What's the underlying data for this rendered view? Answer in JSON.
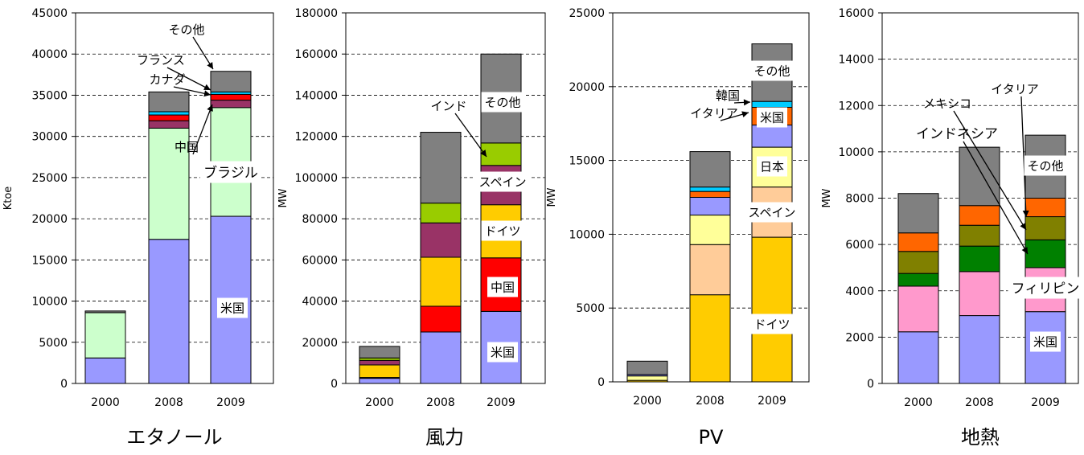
{
  "chart_data": [
    {
      "type": "bar",
      "stacked": true,
      "title": "エタノール",
      "ylabel": "Ktoe",
      "categories": [
        "2000",
        "2008",
        "2009"
      ],
      "ylim": [
        0,
        45000
      ],
      "yticks": [
        "0",
        "5000",
        "10000",
        "15000",
        "20000",
        "25000",
        "30000",
        "35000",
        "40000",
        "45000"
      ],
      "grid": true,
      "series": [
        {
          "color": "#9999FF",
          "values": [
            3100,
            17500,
            20300
          ]
        },
        {
          "color": "#CCFFCC",
          "values": [
            5500,
            13500,
            13200
          ]
        },
        {
          "color": "#993366",
          "values": [
            0,
            900,
            900
          ]
        },
        {
          "color": "#FF0000",
          "values": [
            0,
            700,
            700
          ]
        },
        {
          "color": "#00CCFF",
          "values": [
            0,
            400,
            300
          ]
        },
        {
          "color": "#808080",
          "values": [
            200,
            2400,
            2500
          ]
        }
      ],
      "annotations": [
        {
          "text": "米国"
        },
        {
          "text": "ブラジル"
        },
        {
          "text": "中国"
        },
        {
          "text": "カナダ"
        },
        {
          "text": "フランス"
        },
        {
          "text": "その他"
        }
      ]
    },
    {
      "type": "bar",
      "stacked": true,
      "title": "風力",
      "ylabel": "MW",
      "categories": [
        "2000",
        "2008",
        "2009"
      ],
      "ylim": [
        0,
        180000
      ],
      "yticks": [
        "0",
        "20000",
        "40000",
        "60000",
        "80000",
        "100000",
        "120000",
        "140000",
        "160000",
        "180000"
      ],
      "grid": true,
      "series": [
        {
          "color": "#9999FF",
          "values": [
            2500,
            25000,
            35000
          ]
        },
        {
          "color": "#FF0000",
          "values": [
            400,
            12500,
            26000
          ]
        },
        {
          "color": "#FFCC00",
          "values": [
            6100,
            23800,
            25800
          ]
        },
        {
          "color": "#993366",
          "values": [
            2200,
            16700,
            19100
          ]
        },
        {
          "color": "#99CC00",
          "values": [
            1200,
            9600,
            10900
          ]
        },
        {
          "color": "#808080",
          "values": [
            5600,
            34400,
            43200
          ]
        }
      ],
      "annotations": [
        {
          "text": "米国"
        },
        {
          "text": "中国"
        },
        {
          "text": "ドイツ"
        },
        {
          "text": "スペイン"
        },
        {
          "text": "インド"
        },
        {
          "text": "その他"
        }
      ]
    },
    {
      "type": "bar",
      "stacked": true,
      "title": "PV",
      "ylabel": "MW",
      "categories": [
        "2000",
        "2008",
        "2009"
      ],
      "ylim": [
        0,
        25000
      ],
      "yticks": [
        "0",
        "5000",
        "10000",
        "15000",
        "20000",
        "25000"
      ],
      "grid": true,
      "series": [
        {
          "color": "#FFCC00",
          "values": [
            100,
            5900,
            9800
          ]
        },
        {
          "color": "#FFCC99",
          "values": [
            0,
            3400,
            3400
          ]
        },
        {
          "color": "#FFFF99",
          "values": [
            300,
            2000,
            2700
          ]
        },
        {
          "color": "#9999FF",
          "values": [
            100,
            1200,
            1500
          ]
        },
        {
          "color": "#FF6600",
          "values": [
            0,
            400,
            1200
          ]
        },
        {
          "color": "#00CCFF",
          "values": [
            0,
            300,
            400
          ]
        },
        {
          "color": "#808080",
          "values": [
            900,
            2400,
            3900
          ]
        }
      ],
      "annotations": [
        {
          "text": "ドイツ"
        },
        {
          "text": "スペイン"
        },
        {
          "text": "日本"
        },
        {
          "text": "米国"
        },
        {
          "text": "イタリア"
        },
        {
          "text": "韓国"
        },
        {
          "text": "その他"
        }
      ]
    },
    {
      "type": "bar",
      "stacked": true,
      "title": "地熱",
      "ylabel": "MW",
      "categories": [
        "2000",
        "2008",
        "2009"
      ],
      "ylim": [
        0,
        16000
      ],
      "yticks": [
        "0",
        "2000",
        "4000",
        "6000",
        "8000",
        "10000",
        "12000",
        "14000",
        "16000"
      ],
      "grid": true,
      "series": [
        {
          "color": "#9999FF",
          "values": [
            2230,
            2930,
            3100
          ]
        },
        {
          "color": "#FF99CC",
          "values": [
            1970,
            1900,
            1900
          ]
        },
        {
          "color": "#008000",
          "values": [
            550,
            1100,
            1200
          ]
        },
        {
          "color": "#808000",
          "values": [
            950,
            900,
            1000
          ]
        },
        {
          "color": "#FF6600",
          "values": [
            800,
            850,
            800
          ]
        },
        {
          "color": "#808080",
          "values": [
            1700,
            2520,
            2720
          ]
        }
      ],
      "annotations": [
        {
          "text": "米国"
        },
        {
          "text": "フィリピン"
        },
        {
          "text": "インドネシア"
        },
        {
          "text": "メキシコ"
        },
        {
          "text": "イタリア"
        },
        {
          "text": "その他"
        }
      ]
    }
  ]
}
